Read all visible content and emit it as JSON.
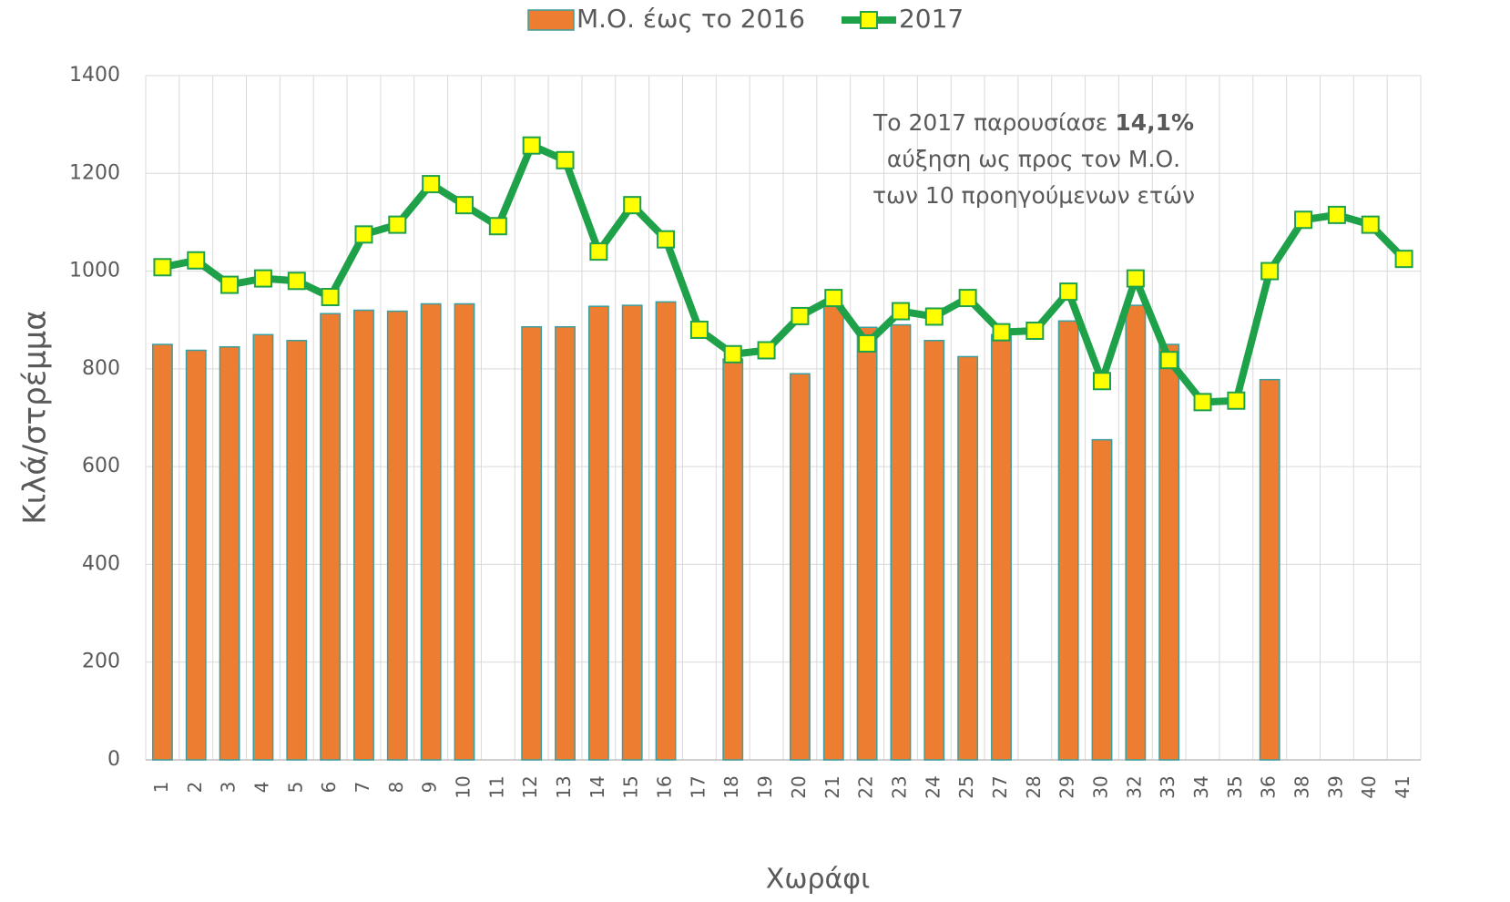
{
  "chart_data": {
    "type": "bar_line",
    "categories": [
      "1",
      "2",
      "3",
      "4",
      "5",
      "6",
      "7",
      "8",
      "9",
      "10",
      "11",
      "12",
      "13",
      "14",
      "15",
      "16",
      "17",
      "18",
      "19",
      "20",
      "21",
      "22",
      "23",
      "24",
      "25",
      "27",
      "28",
      "29",
      "30",
      "32",
      "33",
      "34",
      "35",
      "36",
      "38",
      "39",
      "40",
      "41"
    ],
    "series": [
      {
        "name": "Μ.Ο. έως το 2016",
        "type": "bar",
        "color": "#ed7d31",
        "edge": "#3a9fa0",
        "values": [
          850,
          838,
          845,
          870,
          858,
          913,
          920,
          918,
          933,
          933,
          null,
          886,
          886,
          928,
          930,
          937,
          null,
          820,
          null,
          790,
          930,
          885,
          890,
          858,
          825,
          870,
          null,
          898,
          655,
          930,
          850,
          null,
          null,
          778,
          null,
          null,
          null,
          null
        ]
      },
      {
        "name": "2017",
        "type": "line",
        "color": "#1fa14a",
        "marker_color": "#ffff00",
        "values": [
          1008,
          1022,
          972,
          985,
          980,
          947,
          1075,
          1095,
          1178,
          1135,
          1092,
          1257,
          1227,
          1040,
          1135,
          1065,
          880,
          830,
          838,
          908,
          945,
          852,
          918,
          907,
          945,
          875,
          878,
          958,
          775,
          985,
          818,
          732,
          735,
          1000,
          1105,
          1115,
          1095,
          1025
        ]
      }
    ],
    "ylim": [
      0,
      1400
    ],
    "yticks": [
      0,
      200,
      400,
      600,
      800,
      1000,
      1200,
      1400
    ],
    "grid": true,
    "ylabel": "Κιλά/στρέμμα",
    "xlabel": "Χωράφι",
    "legend": "top",
    "annotation": [
      [
        "Το 2017 παρουσίασε",
        "14,1%"
      ],
      [
        "αύξηση ως προς τον Μ.Ο."
      ],
      [
        "των 10 προηγούμενων ετών"
      ]
    ]
  }
}
